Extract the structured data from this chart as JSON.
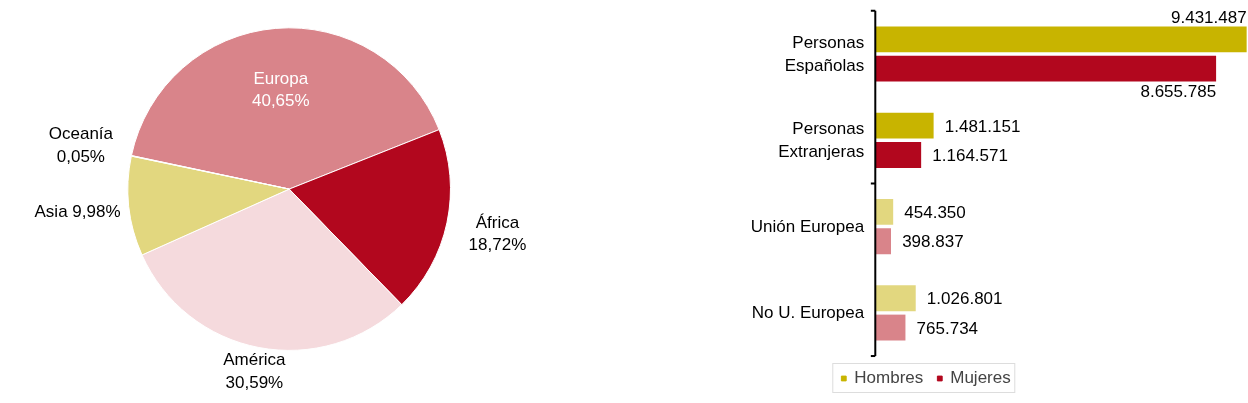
{
  "chart_data": [
    {
      "type": "pie",
      "categories": [
        "Europa",
        "África",
        "América",
        "Asia",
        "Oceanía"
      ],
      "values": [
        40.65,
        18.72,
        30.59,
        9.98,
        0.05
      ],
      "colors": [
        "#d9848a",
        "#b2071e",
        "#f5dadd",
        "#e2d77f",
        "#e9c9a0"
      ],
      "value_labels": [
        "40,65%",
        "18,72%",
        "30,59%",
        "9,98%",
        "0,05%"
      ],
      "data_labels": true
    },
    {
      "type": "bar",
      "orientation": "horizontal",
      "categories": [
        "Personas Españolas",
        "Personas Extranjeras",
        "Unión Europea",
        "No U. Europea"
      ],
      "legend": "bottom",
      "series": [
        {
          "name": "Hombres",
          "color": "#c8b400",
          "colors": [
            "#c8b400",
            "#c8b400",
            "#e2d77f",
            "#e2d77f"
          ],
          "values": [
            9431487,
            1481151,
            454350,
            1026801
          ],
          "value_labels": [
            "9.431.487",
            "1.481.151",
            "454.350",
            "1.026.801"
          ]
        },
        {
          "name": "Mujeres",
          "color": "#b2071e",
          "colors": [
            "#b2071e",
            "#b2071e",
            "#d9848a",
            "#d9848a"
          ],
          "values": [
            8655785,
            1164571,
            398837,
            765734
          ],
          "value_labels": [
            "8.655.785",
            "1.164.571",
            "398.837",
            "765.734"
          ]
        }
      ]
    }
  ]
}
